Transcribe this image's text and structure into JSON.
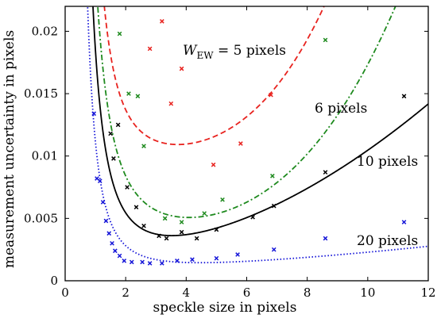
{
  "chart_data": {
    "type": "scatter",
    "title": "",
    "xlabel": "speckle size in pixels",
    "ylabel": "measurement uncertainty in pixels",
    "xlim": [
      0,
      12
    ],
    "ylim": [
      0,
      0.022
    ],
    "xticks": [
      0,
      2,
      4,
      6,
      8,
      10,
      12
    ],
    "yticks": [
      0,
      0.005,
      0.01,
      0.015,
      0.02
    ],
    "ytick_labels": [
      "0",
      "0.005",
      "0.01",
      "0.015",
      "0.02"
    ],
    "grid": false,
    "legend": "none",
    "series": [
      {
        "label_main": "W",
        "label_sub": "EW",
        "label_rest": " = 5 pixels",
        "color": "#e8231f",
        "line_style": "dashed",
        "curve": {
          "a": 0.024,
          "b": 0.0094,
          "p": 2.5,
          "c": 5.5e-06,
          "q": 3.6
        },
        "points": [
          {
            "x": 2.8,
            "y": 0.0186
          },
          {
            "x": 3.2,
            "y": 0.0208
          },
          {
            "x": 3.5,
            "y": 0.0142
          },
          {
            "x": 3.85,
            "y": 0.017
          },
          {
            "x": 4.9,
            "y": 0.0093
          },
          {
            "x": 5.8,
            "y": 0.011
          },
          {
            "x": 6.8,
            "y": 0.0149
          }
        ]
      },
      {
        "label_main": "6 pixels",
        "color": "#1e8a1e",
        "line_style": "dashdot",
        "curve": {
          "a": 0.022,
          "b": 0.0032,
          "p": 2.1,
          "c": 7e-06,
          "q": 3.3
        },
        "points": [
          {
            "x": 1.8,
            "y": 0.0198
          },
          {
            "x": 2.1,
            "y": 0.015
          },
          {
            "x": 2.4,
            "y": 0.0148
          },
          {
            "x": 2.6,
            "y": 0.0108
          },
          {
            "x": 3.3,
            "y": 0.005
          },
          {
            "x": 3.85,
            "y": 0.0047
          },
          {
            "x": 4.6,
            "y": 0.0054
          },
          {
            "x": 5.2,
            "y": 0.0065
          },
          {
            "x": 6.85,
            "y": 0.0084
          },
          {
            "x": 8.6,
            "y": 0.0193
          }
        ]
      },
      {
        "label_main": "10 pixels",
        "color": "#000000",
        "line_style": "solid",
        "curve": {
          "a": 0.0171,
          "b": 0.0013,
          "p": 2.2,
          "c": 0.000114,
          "q": 1.9
        },
        "points": [
          {
            "x": 1.5,
            "y": 0.0118
          },
          {
            "x": 1.6,
            "y": 0.0098
          },
          {
            "x": 1.75,
            "y": 0.0125
          },
          {
            "x": 2.05,
            "y": 0.0075
          },
          {
            "x": 2.35,
            "y": 0.0059
          },
          {
            "x": 2.6,
            "y": 0.0044
          },
          {
            "x": 3.1,
            "y": 0.0036
          },
          {
            "x": 3.35,
            "y": 0.0034
          },
          {
            "x": 3.85,
            "y": 0.0039
          },
          {
            "x": 4.35,
            "y": 0.0034
          },
          {
            "x": 5.0,
            "y": 0.0041
          },
          {
            "x": 6.2,
            "y": 0.0051
          },
          {
            "x": 6.9,
            "y": 0.006
          },
          {
            "x": 8.6,
            "y": 0.0087
          },
          {
            "x": 11.2,
            "y": 0.0148
          }
        ]
      },
      {
        "label_main": "20 pixels",
        "color": "#1414d8",
        "line_style": "dotted",
        "curve": {
          "a": 0.0104,
          "b": 0.0007,
          "p": 2.4,
          "c": 4.9e-05,
          "q": 1.5
        },
        "points": [
          {
            "x": 0.95,
            "y": 0.0134
          },
          {
            "x": 1.05,
            "y": 0.0082
          },
          {
            "x": 1.15,
            "y": 0.008
          },
          {
            "x": 1.25,
            "y": 0.0063
          },
          {
            "x": 1.35,
            "y": 0.0048
          },
          {
            "x": 1.45,
            "y": 0.0038
          },
          {
            "x": 1.55,
            "y": 0.003
          },
          {
            "x": 1.65,
            "y": 0.0024
          },
          {
            "x": 1.8,
            "y": 0.002
          },
          {
            "x": 1.95,
            "y": 0.0016
          },
          {
            "x": 2.2,
            "y": 0.0015
          },
          {
            "x": 2.55,
            "y": 0.0015
          },
          {
            "x": 2.8,
            "y": 0.0014
          },
          {
            "x": 3.2,
            "y": 0.0014
          },
          {
            "x": 3.7,
            "y": 0.0016
          },
          {
            "x": 4.2,
            "y": 0.0017
          },
          {
            "x": 5.0,
            "y": 0.0018
          },
          {
            "x": 5.7,
            "y": 0.0021
          },
          {
            "x": 6.9,
            "y": 0.0025
          },
          {
            "x": 8.6,
            "y": 0.0034
          },
          {
            "x": 11.2,
            "y": 0.0047
          }
        ]
      }
    ]
  }
}
